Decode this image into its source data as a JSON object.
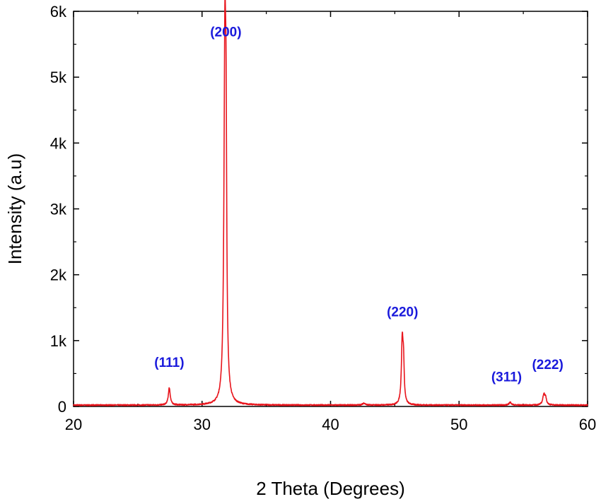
{
  "chart_data": {
    "type": "line",
    "title": "",
    "xlabel": "2 Theta (Degrees)",
    "ylabel": "Intensity (a.u)",
    "xlim": [
      20,
      60
    ],
    "ylim": [
      0,
      6000
    ],
    "x_ticks": [
      20,
      30,
      40,
      50,
      60
    ],
    "x_tick_labels": [
      "20",
      "30",
      "40",
      "50",
      "60"
    ],
    "y_ticks": [
      0,
      1000,
      2000,
      3000,
      4000,
      5000,
      6000
    ],
    "y_tick_labels": [
      "0",
      "1k",
      "2k",
      "3k",
      "4k",
      "5k",
      "6k"
    ],
    "grid": false,
    "line_color": "#e8141c",
    "label_color": "#1a1adc",
    "baseline": 20,
    "peaks": [
      {
        "x": 27.45,
        "y": 260,
        "width": 0.09
      },
      {
        "x": 31.78,
        "y": 5320,
        "width": 0.09
      },
      {
        "x": 31.87,
        "y": 2700,
        "width": 0.06
      },
      {
        "x": 42.6,
        "y": 30,
        "width": 0.12
      },
      {
        "x": 45.58,
        "y": 970,
        "width": 0.08
      },
      {
        "x": 45.68,
        "y": 520,
        "width": 0.06
      },
      {
        "x": 53.98,
        "y": 45,
        "width": 0.1
      },
      {
        "x": 56.6,
        "y": 160,
        "width": 0.1
      },
      {
        "x": 56.74,
        "y": 90,
        "width": 0.08
      }
    ],
    "annotations": [
      {
        "text": "(111)",
        "x": 27.45,
        "y": 600
      },
      {
        "text": "(200)",
        "x": 31.85,
        "y": 5620
      },
      {
        "text": "(220)",
        "x": 45.6,
        "y": 1370
      },
      {
        "text": "(311)",
        "x": 53.7,
        "y": 380
      },
      {
        "text": "(222)",
        "x": 56.9,
        "y": 570
      }
    ]
  }
}
